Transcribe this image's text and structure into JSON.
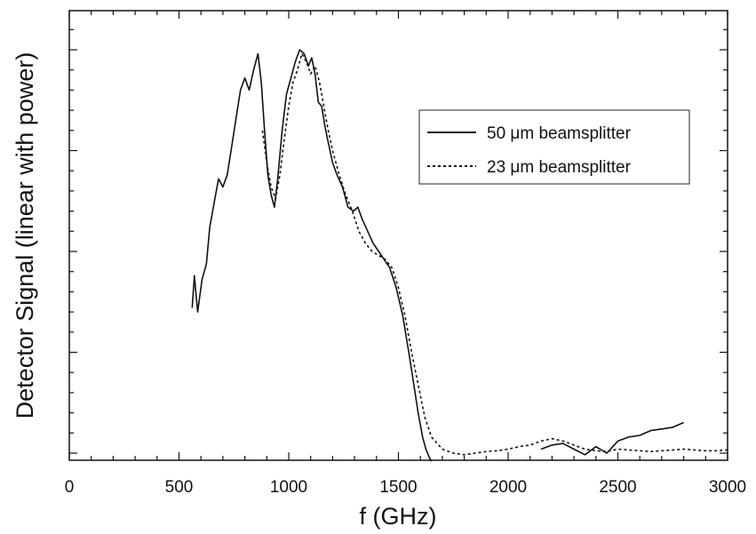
{
  "chart_data": {
    "type": "line",
    "xlabel": "f (GHz)",
    "ylabel": "Detector Signal (linear with power)",
    "xlim": [
      0,
      3000
    ],
    "ylim": [
      0,
      5
    ],
    "x_ticks": [
      "0",
      "500",
      "1000",
      "1500",
      "2000",
      "2500",
      "3000"
    ],
    "y_tick_labels_shown": false,
    "legend_position": "top-right",
    "series": [
      {
        "name": "50 μm beamsplitter",
        "style": "solid",
        "x": [
          560,
          570,
          585,
          605,
          625,
          640,
          660,
          680,
          700,
          720,
          740,
          760,
          780,
          800,
          820,
          840,
          860,
          875,
          890,
          905,
          920,
          935,
          950,
          970,
          990,
          1010,
          1030,
          1050,
          1070,
          1090,
          1105,
          1120,
          1135,
          1150,
          1165,
          1180,
          1200,
          1220,
          1245,
          1270,
          1295,
          1315,
          1335,
          1360,
          1385,
          1410,
          1435,
          1460,
          1490,
          1520,
          1550,
          1570,
          1590,
          1610,
          1625,
          1640,
          1650,
          2150,
          2200,
          2250,
          2300,
          2350,
          2400,
          2450,
          2500,
          2550,
          2600,
          2650,
          2700,
          2750,
          2800
        ],
        "y": [
          1.8,
          2.2,
          1.75,
          2.15,
          2.35,
          2.8,
          3.1,
          3.4,
          3.3,
          3.45,
          3.8,
          4.15,
          4.5,
          4.65,
          4.5,
          4.75,
          4.95,
          4.6,
          4.0,
          3.45,
          3.2,
          3.05,
          3.4,
          4.0,
          4.45,
          4.65,
          4.85,
          5.0,
          4.95,
          4.8,
          4.9,
          4.7,
          4.35,
          4.3,
          4.05,
          3.85,
          3.6,
          3.45,
          3.3,
          3.05,
          3.0,
          3.05,
          2.9,
          2.75,
          2.6,
          2.5,
          2.4,
          2.3,
          2.05,
          1.7,
          1.2,
          0.85,
          0.5,
          0.2,
          0.05,
          -0.05,
          -0.1,
          0.05,
          0.1,
          0.12,
          0.05,
          -0.02,
          0.08,
          0.0,
          0.15,
          0.2,
          0.22,
          0.28,
          0.3,
          0.32,
          0.38
        ]
      },
      {
        "name": "23 μm beamsplitter",
        "style": "dotted",
        "x": [
          880,
          900,
          920,
          940,
          960,
          980,
          1000,
          1020,
          1040,
          1060,
          1080,
          1100,
          1120,
          1140,
          1160,
          1180,
          1200,
          1230,
          1260,
          1290,
          1320,
          1350,
          1380,
          1410,
          1440,
          1470,
          1500,
          1530,
          1560,
          1590,
          1620,
          1650,
          1700,
          1750,
          1800,
          1850,
          1900,
          1950,
          2000,
          2050,
          2100,
          2150,
          2200,
          2250,
          2300,
          2350,
          2400,
          2450,
          2500,
          2550,
          2600,
          2650,
          2700,
          2750,
          2800,
          2850,
          2900,
          2950,
          3000
        ],
        "y": [
          4.0,
          3.6,
          3.3,
          3.15,
          3.45,
          3.9,
          4.3,
          4.6,
          4.75,
          4.95,
          4.85,
          4.7,
          4.8,
          4.6,
          4.3,
          4.0,
          3.75,
          3.45,
          3.2,
          3.0,
          2.75,
          2.6,
          2.5,
          2.45,
          2.4,
          2.3,
          2.05,
          1.7,
          1.25,
          0.85,
          0.45,
          0.2,
          0.05,
          0.0,
          -0.02,
          0.0,
          0.02,
          0.03,
          0.05,
          0.08,
          0.1,
          0.15,
          0.18,
          0.15,
          0.1,
          0.05,
          0.03,
          0.02,
          0.05,
          0.04,
          0.03,
          0.02,
          0.03,
          0.04,
          0.05,
          0.04,
          0.03,
          0.03,
          0.04
        ]
      }
    ]
  }
}
